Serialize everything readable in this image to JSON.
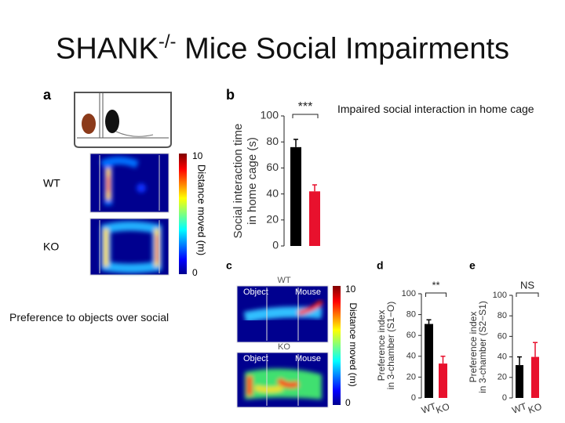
{
  "title": {
    "main": "SHANK",
    "superscript": "-/-",
    "rest": " Mice Social Impairments"
  },
  "captions": [
    "Impaired social interaction in home cage",
    "Preference to objects over social"
  ],
  "panel_a": {
    "label": "a",
    "rows": [
      "WT",
      "KO"
    ],
    "colorbar": {
      "max": 10,
      "min": 0,
      "label": "Distance moved (m)"
    }
  },
  "panel_b": {
    "label": "b",
    "type": "bar",
    "values": [
      76,
      42
    ],
    "errors": [
      6,
      5
    ],
    "colors": [
      "#000000",
      "#e8112d"
    ],
    "ylim": [
      0,
      100
    ],
    "yticks": [
      0,
      20,
      40,
      60,
      80,
      100
    ],
    "ylabel": [
      "Social interaction time",
      "in home cage (s)"
    ],
    "significance": "***"
  },
  "panel_c": {
    "label": "c",
    "rows": [
      "WT",
      "KO"
    ],
    "arena_labels": [
      "Object",
      "Mouse"
    ],
    "colorbar": {
      "max": 10,
      "min": 0,
      "label": "Distance moved (m)"
    }
  },
  "panel_d": {
    "label": "d",
    "type": "bar",
    "categories": [
      "WT",
      "KO"
    ],
    "values": [
      71,
      33
    ],
    "errors": [
      4,
      7
    ],
    "colors": [
      "#000000",
      "#e8112d"
    ],
    "ylim": [
      0,
      100
    ],
    "yticks": [
      0,
      20,
      40,
      60,
      80,
      100
    ],
    "ylabel": [
      "Preference index",
      "in 3-chamber (S1−O)"
    ],
    "significance": "**"
  },
  "panel_e": {
    "label": "e",
    "type": "bar",
    "categories": [
      "WT",
      "KO"
    ],
    "values": [
      32,
      40
    ],
    "errors": [
      8,
      14
    ],
    "colors": [
      "#000000",
      "#e8112d"
    ],
    "ylim": [
      0,
      100
    ],
    "yticks": [
      0,
      20,
      40,
      60,
      80,
      100
    ],
    "ylabel": [
      "Preference index",
      "in 3-chamber (S2−S1)"
    ],
    "significance": "NS"
  }
}
